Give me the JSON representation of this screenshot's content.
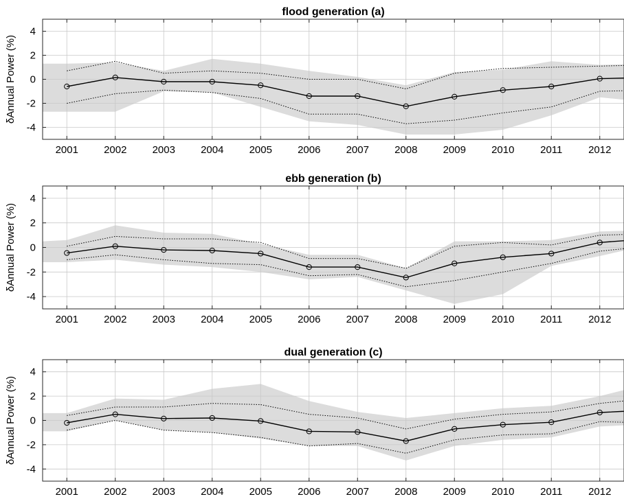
{
  "chart_data": [
    {
      "type": "line",
      "title": "flood generation (a)",
      "ylabel": "δAnnual Power (%)",
      "xlabel": "",
      "xlim": [
        2000.5,
        2012.5
      ],
      "ylim": [
        -5,
        5
      ],
      "x_ticks": [
        "2001",
        "2002",
        "2003",
        "2004",
        "2005",
        "2006",
        "2007",
        "2008",
        "2009",
        "2010",
        "2011",
        "2012"
      ],
      "y_ticks": [
        "4",
        "2",
        "0",
        "-2",
        "-4"
      ],
      "grid": true,
      "x": [
        2001,
        2002,
        2003,
        2004,
        2005,
        2006,
        2007,
        2008,
        2009,
        2010,
        2011,
        2012,
        2013
      ],
      "band_x": [
        2000.5,
        2001,
        2002,
        2003,
        2004,
        2005,
        2006,
        2007,
        2008,
        2009,
        2010,
        2011,
        2012,
        2013
      ],
      "series": [
        {
          "values": [
            -0.6,
            0.15,
            -0.2,
            -0.2,
            -0.5,
            -1.4,
            -1.4,
            -2.25,
            -1.45,
            -0.9,
            -0.6,
            0.05,
            0.15
          ]
        },
        {
          "values": [
            0.7,
            1.5,
            0.5,
            0.7,
            0.5,
            0.0,
            0.0,
            -0.8,
            0.5,
            0.9,
            1.0,
            1.1,
            1.2
          ]
        },
        {
          "values": [
            -2.0,
            -1.2,
            -0.9,
            -1.1,
            -1.6,
            -2.9,
            -2.9,
            -3.7,
            -3.4,
            -2.8,
            -2.3,
            -1.0,
            -0.9
          ]
        }
      ],
      "band_upper": [
        1.3,
        1.3,
        1.4,
        0.7,
        1.7,
        1.3,
        0.7,
        0.2,
        -0.5,
        0.6,
        0.8,
        1.5,
        1.2,
        1.3
      ],
      "band_lower": [
        -2.7,
        -2.7,
        -2.7,
        -1.0,
        -1.1,
        -2.3,
        -3.5,
        -3.8,
        -4.6,
        -4.6,
        -4.2,
        -3.0,
        -1.5,
        -1.9
      ]
    },
    {
      "type": "line",
      "title": "ebb generation (b)",
      "ylabel": "δAnnual Power (%)",
      "xlabel": "",
      "xlim": [
        2000.5,
        2012.5
      ],
      "ylim": [
        -5,
        5
      ],
      "x_ticks": [
        "2001",
        "2002",
        "2003",
        "2004",
        "2005",
        "2006",
        "2007",
        "2008",
        "2009",
        "2010",
        "2011",
        "2012"
      ],
      "y_ticks": [
        "4",
        "2",
        "0",
        "-2",
        "-4"
      ],
      "grid": true,
      "x": [
        2001,
        2002,
        2003,
        2004,
        2005,
        2006,
        2007,
        2008,
        2009,
        2010,
        2011,
        2012,
        2013
      ],
      "band_x": [
        2000.5,
        2001,
        2002,
        2003,
        2004,
        2005,
        2006,
        2007,
        2008,
        2009,
        2010,
        2011,
        2012,
        2013
      ],
      "series": [
        {
          "values": [
            -0.45,
            0.1,
            -0.2,
            -0.25,
            -0.5,
            -1.6,
            -1.6,
            -2.45,
            -1.3,
            -0.8,
            -0.5,
            0.4,
            0.7
          ]
        },
        {
          "values": [
            0.1,
            0.9,
            0.7,
            0.7,
            0.4,
            -0.9,
            -0.9,
            -1.7,
            0.1,
            0.4,
            0.2,
            1.0,
            1.1
          ]
        },
        {
          "values": [
            -1.0,
            -0.6,
            -1.0,
            -1.3,
            -1.4,
            -2.3,
            -2.2,
            -3.2,
            -2.7,
            -2.0,
            -1.3,
            -0.3,
            0.1
          ]
        }
      ],
      "band_upper": [
        0.5,
        0.6,
        1.8,
        1.2,
        1.1,
        0.3,
        -0.6,
        -0.6,
        -1.7,
        0.5,
        0.5,
        0.6,
        1.3,
        1.4
      ],
      "band_lower": [
        -1.2,
        -1.2,
        -1.0,
        -1.4,
        -1.6,
        -2.0,
        -2.6,
        -2.4,
        -3.5,
        -4.6,
        -3.8,
        -1.5,
        -0.7,
        0.2
      ]
    },
    {
      "type": "line",
      "title": "dual generation (c)",
      "ylabel": "δAnnual Power (%)",
      "xlabel": "",
      "xlim": [
        2000.5,
        2012.5
      ],
      "ylim": [
        -5,
        5
      ],
      "x_ticks": [
        "2001",
        "2002",
        "2003",
        "2004",
        "2005",
        "2006",
        "2007",
        "2008",
        "2009",
        "2010",
        "2011",
        "2012"
      ],
      "y_ticks": [
        "4",
        "2",
        "0",
        "-2",
        "-4"
      ],
      "grid": true,
      "x": [
        2001,
        2002,
        2003,
        2004,
        2005,
        2006,
        2007,
        2008,
        2009,
        2010,
        2011,
        2012,
        2013
      ],
      "band_x": [
        2000.5,
        2001,
        2002,
        2003,
        2004,
        2005,
        2006,
        2007,
        2008,
        2009,
        2010,
        2011,
        2012,
        2013
      ],
      "series": [
        {
          "values": [
            -0.2,
            0.5,
            0.15,
            0.2,
            -0.05,
            -0.9,
            -0.95,
            -1.7,
            -0.7,
            -0.35,
            -0.15,
            0.65,
            0.85
          ]
        },
        {
          "values": [
            0.4,
            1.1,
            1.1,
            1.4,
            1.3,
            0.5,
            0.2,
            -0.7,
            0.1,
            0.5,
            0.7,
            1.4,
            1.8
          ]
        },
        {
          "values": [
            -0.8,
            0.0,
            -0.8,
            -1.0,
            -1.4,
            -2.1,
            -1.9,
            -2.7,
            -1.6,
            -1.2,
            -1.1,
            -0.1,
            -0.2
          ]
        }
      ],
      "band_upper": [
        0.6,
        0.6,
        1.8,
        1.7,
        2.6,
        3.0,
        1.6,
        0.7,
        0.2,
        0.6,
        1.0,
        1.2,
        2.0,
        3.0
      ],
      "band_lower": [
        -0.9,
        -0.9,
        0.0,
        -0.8,
        -1.0,
        -1.5,
        -2.1,
        -2.1,
        -3.3,
        -2.1,
        -1.6,
        -1.4,
        -0.5,
        -0.3
      ]
    }
  ]
}
